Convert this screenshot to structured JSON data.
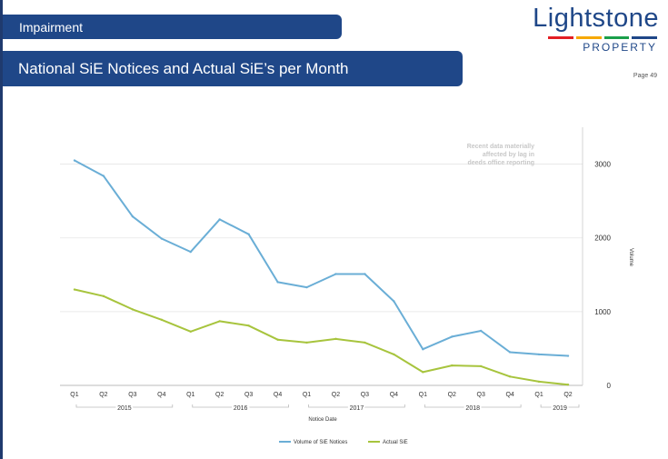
{
  "header": {
    "section_title": "Impairment",
    "slide_title": "National SiE Notices and Actual SiE’s per Month",
    "page_label": "Page 49"
  },
  "logo": {
    "name": "Lightstone",
    "sub": "PROPERTY",
    "bar_colors": [
      "#e31e24",
      "#f6a800",
      "#1a9f4a",
      "#1f4788"
    ]
  },
  "colors": {
    "notices": "#6aaed6",
    "actual": "#a7c43d",
    "brand": "#1f4788"
  },
  "chart_data": {
    "type": "line",
    "annotation": [
      "Recent data materially",
      "affected by lag in",
      "deeds office reporting"
    ],
    "xlabel": "Notice Date",
    "ylabel": "Volume",
    "ylim": [
      0,
      3500
    ],
    "yticks": [
      0,
      1000,
      2000,
      3000
    ],
    "grid": "horizontal",
    "legend_position": "bottom",
    "categories": [
      "Q1",
      "Q2",
      "Q3",
      "Q4",
      "Q1",
      "Q2",
      "Q3",
      "Q4",
      "Q1",
      "Q2",
      "Q3",
      "Q4",
      "Q1",
      "Q2",
      "Q3",
      "Q4",
      "Q1",
      "Q2"
    ],
    "year_groups": [
      {
        "label": "2015",
        "count": 4
      },
      {
        "label": "2016",
        "count": 4
      },
      {
        "label": "2017",
        "count": 4
      },
      {
        "label": "2018",
        "count": 4
      },
      {
        "label": "2019",
        "count": 2
      }
    ],
    "series": [
      {
        "name": "Volume of SiE Notices",
        "values": [
          3050,
          2840,
          2290,
          1990,
          1810,
          2250,
          2050,
          1400,
          1330,
          1510,
          1510,
          1140,
          490,
          660,
          740,
          450,
          420,
          400
        ]
      },
      {
        "name": "Actual SiE",
        "values": [
          1300,
          1210,
          1030,
          890,
          730,
          870,
          810,
          620,
          580,
          630,
          580,
          420,
          180,
          270,
          260,
          120,
          50,
          10
        ]
      }
    ]
  }
}
